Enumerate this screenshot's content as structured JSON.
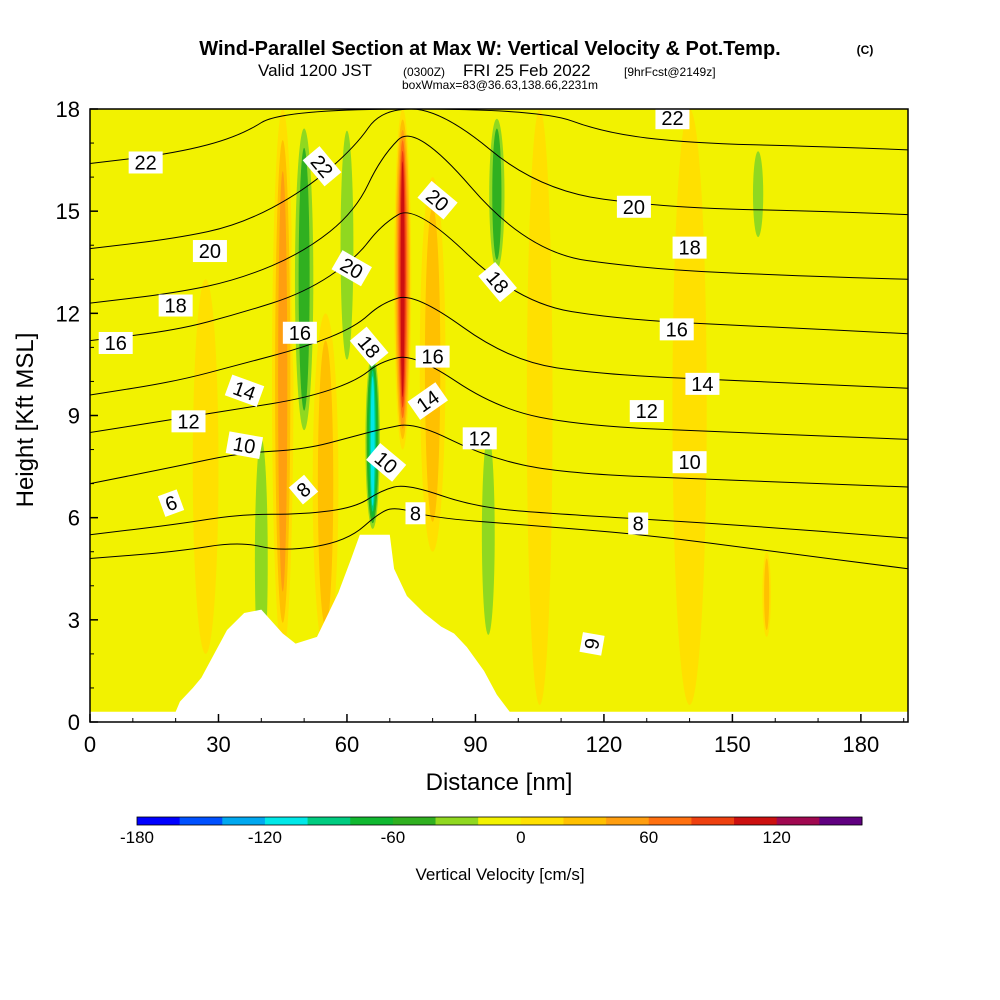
{
  "chart_data": {
    "type": "heatmap",
    "title": "Wind-Parallel Section at Max W: Vertical Velocity & Pot.Temp.",
    "title_mark": "(C)",
    "subtitle": {
      "valid_label": "Valid 1200 JST",
      "utc_label": "(0300Z)",
      "date_label": "FRI 25 Feb 2022",
      "forecast_label": "[9hrFcst@2149z]"
    },
    "box_info": "boxWmax=83@36.63,138.66,2231m",
    "xlabel": "Distance [nm]",
    "ylabel": "Height [Kft MSL]",
    "xlim": [
      0,
      191
    ],
    "ylim": [
      0,
      18
    ],
    "x_ticks": [
      0,
      30,
      60,
      90,
      120,
      150,
      180
    ],
    "y_ticks": [
      0,
      3,
      6,
      9,
      12,
      15,
      18
    ],
    "colorbar": {
      "label": "Vertical Velocity [cm/s]",
      "levels": [
        -180,
        -160,
        -140,
        -120,
        -100,
        -80,
        -60,
        -40,
        -20,
        0,
        20,
        40,
        60,
        80,
        100,
        120,
        140,
        160
      ],
      "tick_values": [
        -180,
        -120,
        -60,
        0,
        60,
        120
      ],
      "tick_labels": [
        "-180",
        "-120",
        "-60",
        "0",
        "60",
        "120"
      ],
      "colors": [
        "#0000ff",
        "#0050ff",
        "#00a8f0",
        "#00e8e8",
        "#00cc80",
        "#10b830",
        "#30b020",
        "#90d820",
        "#f2f200",
        "#ffe000",
        "#ffc000",
        "#ff9e10",
        "#ff7010",
        "#ee4010",
        "#cc1010",
        "#a00850",
        "#600080"
      ]
    },
    "vertical_velocity_bands": [
      {
        "x": 27,
        "half_width": 3,
        "ymin": 2,
        "ymax": 13,
        "w": 10
      },
      {
        "x": 40,
        "half_width": 2.5,
        "ymin": 0.5,
        "ymax": 9,
        "w": -40
      },
      {
        "x": 45,
        "half_width": 2.5,
        "ymin": 2,
        "ymax": 18,
        "w": 60
      },
      {
        "x": 50,
        "half_width": 3,
        "ymin": 8,
        "ymax": 18,
        "w": -50
      },
      {
        "x": 55,
        "half_width": 3,
        "ymin": 2,
        "ymax": 12,
        "w": 30
      },
      {
        "x": 60,
        "half_width": 2.5,
        "ymin": 10,
        "ymax": 18,
        "w": -40
      },
      {
        "x": 66,
        "half_width": 2,
        "ymin": 5.5,
        "ymax": 11,
        "w": -120
      },
      {
        "x": 73,
        "half_width": 2,
        "ymin": 8,
        "ymax": 18,
        "w": 110
      },
      {
        "x": 80,
        "half_width": 3,
        "ymin": 5,
        "ymax": 16,
        "w": 30
      },
      {
        "x": 93,
        "half_width": 2.5,
        "ymin": 2,
        "ymax": 9,
        "w": -40
      },
      {
        "x": 95,
        "half_width": 2.5,
        "ymin": 13,
        "ymax": 18,
        "w": -50
      },
      {
        "x": 105,
        "half_width": 3,
        "ymin": 0.5,
        "ymax": 18,
        "w": 15
      },
      {
        "x": 118,
        "half_width": 2,
        "ymin": 4,
        "ymax": 7,
        "w": -20
      },
      {
        "x": 140,
        "half_width": 4,
        "ymin": 0.5,
        "ymax": 18,
        "w": 10
      },
      {
        "x": 156,
        "half_width": 2,
        "ymin": 14,
        "ymax": 17,
        "w": -30
      },
      {
        "x": 158,
        "half_width": 1,
        "ymin": 2.5,
        "ymax": 5,
        "w": 40
      }
    ],
    "terrain": [
      [
        0,
        0.3
      ],
      [
        20,
        0.3
      ],
      [
        21,
        0.6
      ],
      [
        24,
        1
      ],
      [
        26,
        1.3
      ],
      [
        29,
        2
      ],
      [
        32,
        2.7
      ],
      [
        36,
        3.2
      ],
      [
        40,
        3.3
      ],
      [
        45,
        2.6
      ],
      [
        48,
        2.3
      ],
      [
        53,
        2.5
      ],
      [
        58,
        3.8
      ],
      [
        61,
        4.8
      ],
      [
        63,
        5.5
      ],
      [
        70,
        5.5
      ],
      [
        71,
        4.5
      ],
      [
        74,
        3.7
      ],
      [
        78,
        3.2
      ],
      [
        82,
        2.8
      ],
      [
        85,
        2.6
      ],
      [
        88,
        2.2
      ],
      [
        92,
        1.5
      ],
      [
        95,
        0.8
      ],
      [
        98,
        0.3
      ],
      [
        191,
        0.3
      ]
    ],
    "isentropes": [
      {
        "label": "6",
        "points": [
          [
            0,
            4.8
          ],
          [
            20,
            5.0
          ],
          [
            35,
            5.3
          ],
          [
            45,
            5.0
          ],
          [
            60,
            5.3
          ],
          [
            68,
            6.2
          ],
          [
            72,
            6.3
          ],
          [
            80,
            6.0
          ],
          [
            100,
            5.8
          ],
          [
            130,
            5.5
          ],
          [
            160,
            5.0
          ],
          [
            191,
            4.5
          ]
        ]
      },
      {
        "label": "8",
        "points": [
          [
            0,
            5.5
          ],
          [
            20,
            5.8
          ],
          [
            35,
            6.1
          ],
          [
            50,
            6.1
          ],
          [
            62,
            6.3
          ],
          [
            68,
            6.8
          ],
          [
            74,
            7.0
          ],
          [
            90,
            6.3
          ],
          [
            110,
            6.1
          ],
          [
            150,
            5.8
          ],
          [
            191,
            5.4
          ]
        ]
      },
      {
        "label": "10",
        "points": [
          [
            0,
            7.0
          ],
          [
            20,
            7.5
          ],
          [
            35,
            7.9
          ],
          [
            50,
            8.0
          ],
          [
            62,
            8.4
          ],
          [
            68,
            8.6
          ],
          [
            76,
            8.8
          ],
          [
            92,
            7.8
          ],
          [
            110,
            7.3
          ],
          [
            150,
            7.1
          ],
          [
            191,
            6.9
          ]
        ]
      },
      {
        "label": "12",
        "points": [
          [
            0,
            8.5
          ],
          [
            20,
            8.9
          ],
          [
            35,
            9.2
          ],
          [
            50,
            9.5
          ],
          [
            62,
            10.0
          ],
          [
            68,
            10.6
          ],
          [
            76,
            10.8
          ],
          [
            95,
            9.2
          ],
          [
            115,
            8.7
          ],
          [
            150,
            8.5
          ],
          [
            191,
            8.3
          ]
        ]
      },
      {
        "label": "14",
        "points": [
          [
            0,
            9.6
          ],
          [
            20,
            10.0
          ],
          [
            35,
            10.5
          ],
          [
            50,
            11.0
          ],
          [
            62,
            11.6
          ],
          [
            68,
            12.3
          ],
          [
            76,
            12.6
          ],
          [
            98,
            10.6
          ],
          [
            120,
            10.2
          ],
          [
            155,
            10.0
          ],
          [
            191,
            9.8
          ]
        ]
      },
      {
        "label": "16",
        "points": [
          [
            0,
            11.2
          ],
          [
            20,
            11.5
          ],
          [
            35,
            12.0
          ],
          [
            50,
            12.6
          ],
          [
            62,
            13.6
          ],
          [
            68,
            14.6
          ],
          [
            76,
            15.2
          ],
          [
            100,
            12.3
          ],
          [
            125,
            11.8
          ],
          [
            160,
            11.6
          ],
          [
            191,
            11.4
          ]
        ]
      },
      {
        "label": "18",
        "points": [
          [
            0,
            12.3
          ],
          [
            20,
            12.6
          ],
          [
            35,
            13.0
          ],
          [
            50,
            13.8
          ],
          [
            62,
            15.0
          ],
          [
            68,
            16.6
          ],
          [
            76,
            17.6
          ],
          [
            102,
            13.8
          ],
          [
            130,
            13.3
          ],
          [
            165,
            13.1
          ],
          [
            191,
            13.0
          ]
        ]
      },
      {
        "label": "20",
        "points": [
          [
            0,
            13.9
          ],
          [
            20,
            14.2
          ],
          [
            35,
            14.6
          ],
          [
            50,
            15.6
          ],
          [
            62,
            16.9
          ],
          [
            68,
            18.0
          ],
          [
            82,
            18.0
          ],
          [
            105,
            15.6
          ],
          [
            135,
            15.1
          ],
          [
            170,
            15.0
          ],
          [
            191,
            14.9
          ]
        ]
      },
      {
        "label": "22",
        "points": [
          [
            0,
            16.4
          ],
          [
            20,
            16.7
          ],
          [
            35,
            17.2
          ],
          [
            45,
            18.0
          ],
          [
            105,
            18.0
          ],
          [
            120,
            17.3
          ],
          [
            140,
            17.0
          ],
          [
            170,
            16.9
          ],
          [
            191,
            16.8
          ]
        ]
      }
    ],
    "contour_labels": [
      {
        "text": "22",
        "x": 13,
        "y": 16.4,
        "angle": 0
      },
      {
        "text": "22",
        "x": 54,
        "y": 16.3,
        "angle": 50
      },
      {
        "text": "20",
        "x": 81,
        "y": 15.3,
        "angle": 40
      },
      {
        "text": "22",
        "x": 136,
        "y": 17.7,
        "angle": 0
      },
      {
        "text": "20",
        "x": 127,
        "y": 15.1,
        "angle": 0
      },
      {
        "text": "18",
        "x": 140,
        "y": 13.9,
        "angle": 0
      },
      {
        "text": "20",
        "x": 28,
        "y": 13.8,
        "angle": 0
      },
      {
        "text": "20",
        "x": 61,
        "y": 13.3,
        "angle": 30
      },
      {
        "text": "18",
        "x": 95,
        "y": 12.9,
        "angle": 50
      },
      {
        "text": "18",
        "x": 20,
        "y": 12.2,
        "angle": 0
      },
      {
        "text": "16",
        "x": 49,
        "y": 11.4,
        "angle": 0
      },
      {
        "text": "18",
        "x": 65,
        "y": 11.0,
        "angle": 50
      },
      {
        "text": "16",
        "x": 6,
        "y": 11.1,
        "angle": 0
      },
      {
        "text": "16",
        "x": 80,
        "y": 10.7,
        "angle": 0
      },
      {
        "text": "16",
        "x": 137,
        "y": 11.5,
        "angle": 0
      },
      {
        "text": "14",
        "x": 36,
        "y": 9.7,
        "angle": 20
      },
      {
        "text": "14",
        "x": 79,
        "y": 9.4,
        "angle": -35
      },
      {
        "text": "14",
        "x": 143,
        "y": 9.9,
        "angle": 0
      },
      {
        "text": "12",
        "x": 23,
        "y": 8.8,
        "angle": 0
      },
      {
        "text": "12",
        "x": 130,
        "y": 9.1,
        "angle": 0
      },
      {
        "text": "10",
        "x": 36,
        "y": 8.1,
        "angle": 10
      },
      {
        "text": "12",
        "x": 91,
        "y": 8.3,
        "angle": 0
      },
      {
        "text": "10",
        "x": 69,
        "y": 7.6,
        "angle": 40
      },
      {
        "text": "10",
        "x": 140,
        "y": 7.6,
        "angle": 0
      },
      {
        "text": "8",
        "x": 50,
        "y": 6.8,
        "angle": -40
      },
      {
        "text": "8",
        "x": 76,
        "y": 6.1,
        "angle": 0
      },
      {
        "text": "8",
        "x": 128,
        "y": 5.8,
        "angle": 0
      },
      {
        "text": "6",
        "x": 19,
        "y": 6.4,
        "angle": -20
      },
      {
        "text": "6",
        "x": 117,
        "y": 2.3,
        "angle": 100
      }
    ]
  }
}
